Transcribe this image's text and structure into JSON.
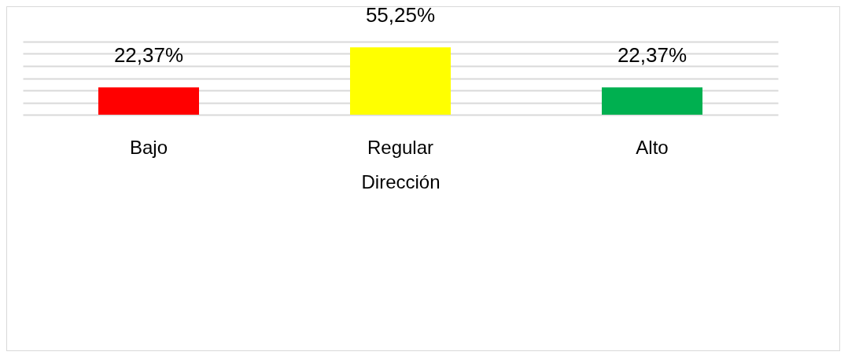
{
  "chart_data": {
    "type": "bar",
    "xlabel": "Dirección",
    "categories": [
      "Bajo",
      "Regular",
      "Alto"
    ],
    "values": [
      22.37,
      55.25,
      22.37
    ],
    "colors": [
      "#ff0000",
      "#ffff00",
      "#00b050"
    ],
    "value_labels": [
      "22,37%",
      "55,25%",
      "22,37%"
    ],
    "grid": "y",
    "tick_labels": "x",
    "legend": false
  }
}
